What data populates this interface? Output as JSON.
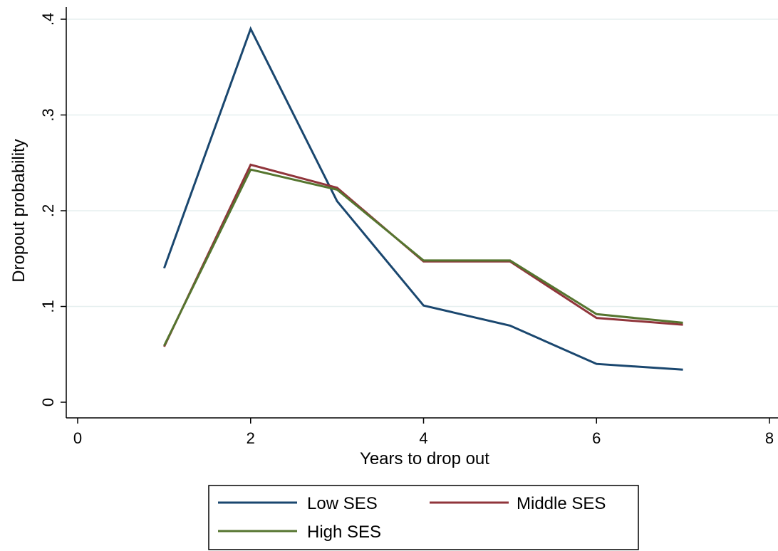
{
  "chart_data": {
    "type": "line",
    "title": "",
    "xlabel": "Years to drop out",
    "ylabel": "Dropout probability",
    "xlim": [
      0,
      8
    ],
    "ylim": [
      0,
      0.4
    ],
    "x_ticks": [
      0,
      2,
      4,
      6,
      8
    ],
    "x_tick_labels": [
      "0",
      "2",
      "4",
      "6",
      "8"
    ],
    "y_ticks": [
      0,
      0.1,
      0.2,
      0.3,
      0.4
    ],
    "y_tick_labels": [
      "0",
      ".1",
      ".2",
      ".3",
      ".4"
    ],
    "grid": "horizontal",
    "legend_position": "bottom",
    "x": [
      1,
      2,
      3,
      4,
      5,
      6,
      7
    ],
    "series": [
      {
        "name": "Low SES",
        "color": "#1a476f",
        "values": [
          0.14,
          0.39,
          0.21,
          0.101,
          0.08,
          0.04,
          0.034
        ]
      },
      {
        "name": "Middle SES",
        "color": "#90353b",
        "values": [
          0.058,
          0.248,
          0.224,
          0.147,
          0.147,
          0.088,
          0.081
        ]
      },
      {
        "name": "High SES",
        "color": "#55752f",
        "values": [
          0.059,
          0.243,
          0.222,
          0.148,
          0.148,
          0.092,
          0.083
        ]
      }
    ]
  }
}
